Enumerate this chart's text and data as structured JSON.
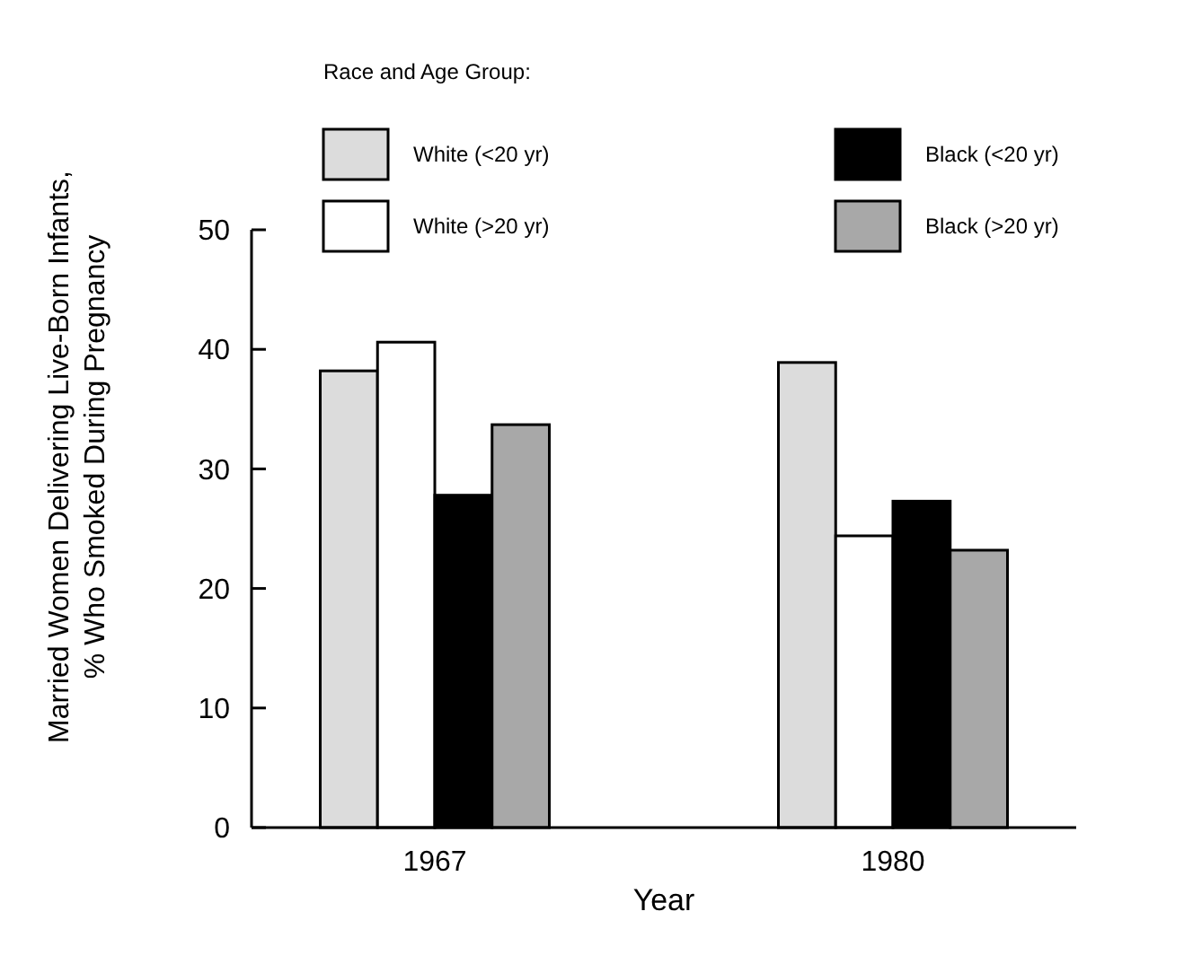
{
  "chart_data": {
    "type": "bar",
    "xlabel": "Year",
    "ylabel": "Married Women Delivering Live-Born Infants, % Who Smoked During Pregnancy",
    "legend_title": "Race and Age Group:",
    "categories": [
      "1967",
      "1980"
    ],
    "series": [
      {
        "name": "White (<20 yr)",
        "color": "#dcdcdc",
        "values": [
          38.2,
          38.9
        ]
      },
      {
        "name": "White (>20 yr)",
        "color": "#ffffff",
        "values": [
          40.6,
          24.4
        ]
      },
      {
        "name": "Black (<20 yr)",
        "color": "#000000",
        "values": [
          27.8,
          27.3
        ]
      },
      {
        "name": "Black (>20 yr)",
        "color": "#a8a8a8",
        "values": [
          33.7,
          23.2
        ]
      }
    ],
    "ylim": [
      0,
      50
    ],
    "yticks": [
      0,
      10,
      20,
      30,
      40,
      50
    ],
    "legend": "top",
    "grid": false
  }
}
